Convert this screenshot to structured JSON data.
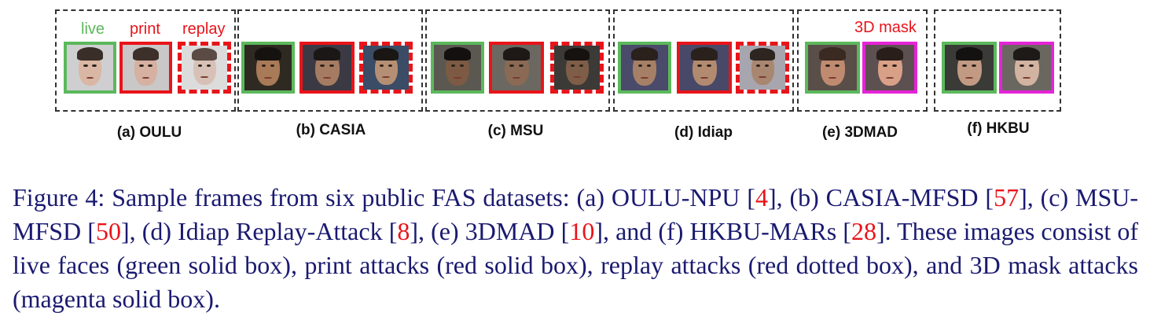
{
  "colors": {
    "live": "#5cb85c",
    "attack_red": "#e8141a",
    "mask_magenta": "#e424d6",
    "caption_text": "#1a1a70"
  },
  "figure": {
    "annotations": {
      "live": "live",
      "print": "print",
      "replay": "replay",
      "mask": "3D mask"
    },
    "groups": [
      {
        "label": "(a) OULU"
      },
      {
        "label": "(b) CASIA"
      },
      {
        "label": "(c) MSU"
      },
      {
        "label": "(d) Idiap"
      },
      {
        "label": "(e) 3DMAD"
      },
      {
        "label": "(f) HKBU"
      }
    ]
  },
  "caption": {
    "prefix": "Figure 4:   Sample frames from six public FAS datasets: (a) OULU-NPU [",
    "ref1": "4",
    "t1": "], (b) CASIA-MFSD [",
    "ref2": "57",
    "t2": "], (c) MSU-MFSD [",
    "ref3": "50",
    "t3": "], (d) Idiap Replay-Attack [",
    "ref4": "8",
    "t4": "], (e) 3DMAD [",
    "ref5": "10",
    "t5": "], and (f) HKBU-MARs [",
    "ref6": "28",
    "t6": "]. These images consist of live faces (green solid box), print attacks (red solid box), replay attacks (red dotted box), and 3D mask attacks (magenta solid box)."
  }
}
